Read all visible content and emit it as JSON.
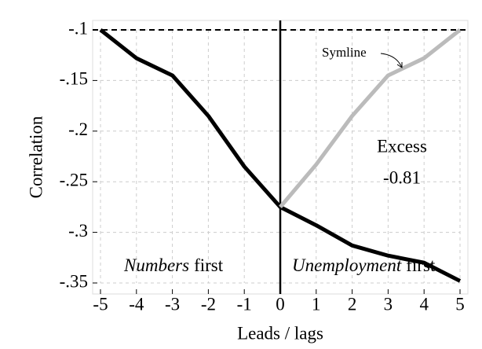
{
  "chart_data": {
    "type": "line",
    "xlabel": "Leads / lags",
    "ylabel": "Correlation",
    "x": [
      -5,
      -4,
      -3,
      -2,
      -1,
      0,
      1,
      2,
      3,
      4,
      5
    ],
    "series": [
      {
        "color": "#000000",
        "values": [
          -0.1,
          -0.128,
          -0.145,
          -0.185,
          -0.235,
          -0.275,
          -0.293,
          -0.313,
          -0.323,
          -0.33,
          -0.348
        ]
      },
      {
        "color": "#bbbbbb",
        "values": [
          null,
          null,
          null,
          null,
          null,
          -0.275,
          -0.233,
          -0.185,
          -0.145,
          -0.128,
          -0.1
        ]
      }
    ],
    "xlim": [
      -5,
      5
    ],
    "ylim": [
      -0.35,
      -0.1
    ],
    "xticks": [
      -5,
      -4,
      -3,
      -2,
      -1,
      0,
      1,
      2,
      3,
      4,
      5
    ],
    "yticks": [
      {
        "value": -0.1,
        "label": "-.1"
      },
      {
        "value": -0.15,
        "label": "-.15"
      },
      {
        "value": -0.2,
        "label": "-.2"
      },
      {
        "value": -0.25,
        "label": "-.25"
      },
      {
        "value": -0.3,
        "label": "-.3"
      },
      {
        "value": -0.35,
        "label": "-.35"
      }
    ],
    "grid": true,
    "reference_lines": {
      "y": -0.1,
      "x": 0
    },
    "annotations": {
      "symline": "Symline",
      "excess": "Excess",
      "excess_value": "-0.81",
      "left": [
        "Numbers",
        "first"
      ],
      "right": [
        "Unemployment",
        "first"
      ]
    }
  }
}
